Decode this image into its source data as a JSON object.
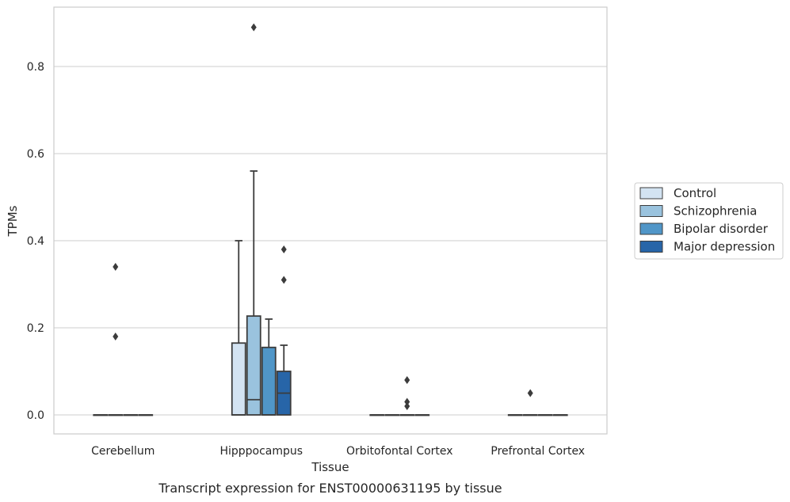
{
  "chart_data": {
    "type": "box",
    "title": "",
    "caption": "Transcript expression for ENST00000631195 by tissue",
    "xlabel": "Tissue",
    "ylabel": "TPMs",
    "ylim": [
      -0.042,
      0.94
    ],
    "yticks": [
      0.0,
      0.2,
      0.4,
      0.6,
      0.8
    ],
    "ytick_labels": [
      "0.0",
      "0.2",
      "0.4",
      "0.6",
      "0.8"
    ],
    "grid": "horizontal",
    "legend_position": "right",
    "categories": [
      "Cerebellum",
      "Hipppocampus",
      "Orbitofontal Cortex",
      "Prefrontal Cortex"
    ],
    "series": [
      {
        "name": "Control",
        "color": "#d3e3f2",
        "boxes": [
          {
            "q1": 0,
            "median": 0,
            "q3": 0,
            "whisker_low": 0,
            "whisker_high": 0,
            "outliers": []
          },
          {
            "q1": 0,
            "median": 0,
            "q3": 0.165,
            "whisker_low": 0,
            "whisker_high": 0.4,
            "outliers": []
          },
          {
            "q1": 0,
            "median": 0,
            "q3": 0,
            "whisker_low": 0,
            "whisker_high": 0,
            "outliers": []
          },
          {
            "q1": 0,
            "median": 0,
            "q3": 0,
            "whisker_low": 0,
            "whisker_high": 0,
            "outliers": []
          }
        ]
      },
      {
        "name": "Schizophrenia",
        "color": "#9ac3de",
        "boxes": [
          {
            "q1": 0,
            "median": 0,
            "q3": 0,
            "whisker_low": 0,
            "whisker_high": 0,
            "outliers": [
              0.34,
              0.18
            ]
          },
          {
            "q1": 0,
            "median": 0.035,
            "q3": 0.227,
            "whisker_low": 0,
            "whisker_high": 0.56,
            "outliers": [
              0.89
            ]
          },
          {
            "q1": 0,
            "median": 0,
            "q3": 0,
            "whisker_low": 0,
            "whisker_high": 0,
            "outliers": []
          },
          {
            "q1": 0,
            "median": 0,
            "q3": 0,
            "whisker_low": 0,
            "whisker_high": 0,
            "outliers": [
              0.05
            ]
          }
        ]
      },
      {
        "name": "Bipolar disorder",
        "color": "#5096c8",
        "boxes": [
          {
            "q1": 0,
            "median": 0,
            "q3": 0,
            "whisker_low": 0,
            "whisker_high": 0,
            "outliers": []
          },
          {
            "q1": 0,
            "median": 0,
            "q3": 0.155,
            "whisker_low": 0,
            "whisker_high": 0.22,
            "outliers": []
          },
          {
            "q1": 0,
            "median": 0,
            "q3": 0,
            "whisker_low": 0,
            "whisker_high": 0,
            "outliers": [
              0.08,
              0.03,
              0.02
            ]
          },
          {
            "q1": 0,
            "median": 0,
            "q3": 0,
            "whisker_low": 0,
            "whisker_high": 0,
            "outliers": []
          }
        ]
      },
      {
        "name": "Major depression",
        "color": "#2765a8",
        "boxes": [
          {
            "q1": 0,
            "median": 0,
            "q3": 0,
            "whisker_low": 0,
            "whisker_high": 0,
            "outliers": []
          },
          {
            "q1": 0,
            "median": 0.05,
            "q3": 0.1,
            "whisker_low": 0,
            "whisker_high": 0.16,
            "outliers": [
              0.38,
              0.31
            ]
          },
          {
            "q1": 0,
            "median": 0,
            "q3": 0,
            "whisker_low": 0,
            "whisker_high": 0,
            "outliers": []
          },
          {
            "q1": 0,
            "median": 0,
            "q3": 0,
            "whisker_low": 0,
            "whisker_high": 0,
            "outliers": []
          }
        ]
      }
    ]
  }
}
